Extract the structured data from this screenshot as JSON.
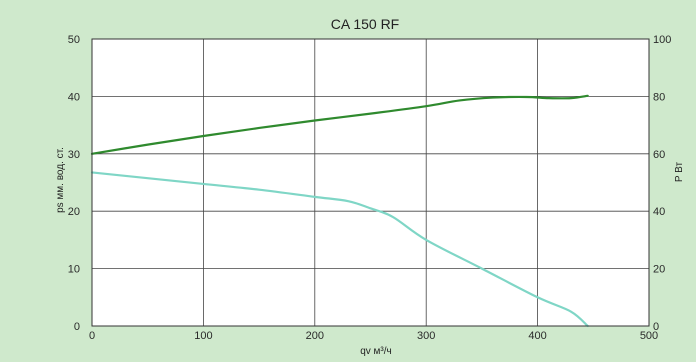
{
  "chart_data": {
    "type": "line",
    "title": "CA 150 RF",
    "xlabel": "qv   м³/ч",
    "ylabel": "ps мм. вод. ст.",
    "y2label": "P Вт",
    "xlim": [
      0,
      500
    ],
    "ylim": [
      0,
      50
    ],
    "y2lim": [
      0,
      100
    ],
    "x_ticks": [
      0,
      100,
      200,
      300,
      400,
      500
    ],
    "y_ticks": [
      0,
      10,
      20,
      30,
      40,
      50
    ],
    "y2_ticks": [
      0,
      20,
      40,
      60,
      80,
      100
    ],
    "grid": true,
    "series": [
      {
        "color": "#2f8a2e",
        "axis": "y",
        "x": [
          0,
          50,
          100,
          150,
          200,
          250,
          300,
          330,
          360,
          390,
          410,
          430,
          445
        ],
        "y": [
          30,
          31.6,
          33.1,
          34.5,
          35.8,
          37.0,
          38.3,
          39.3,
          39.8,
          39.9,
          39.7,
          39.7,
          40.1
        ]
      },
      {
        "color": "#7fd6c6",
        "axis": "y2",
        "x": [
          0,
          50,
          100,
          150,
          200,
          230,
          250,
          270,
          300,
          350,
          400,
          430,
          445
        ],
        "y": [
          53.5,
          51.5,
          49.5,
          47.5,
          45.0,
          43.5,
          41.0,
          38.0,
          30.0,
          20.0,
          10.0,
          5.0,
          0
        ]
      }
    ]
  }
}
